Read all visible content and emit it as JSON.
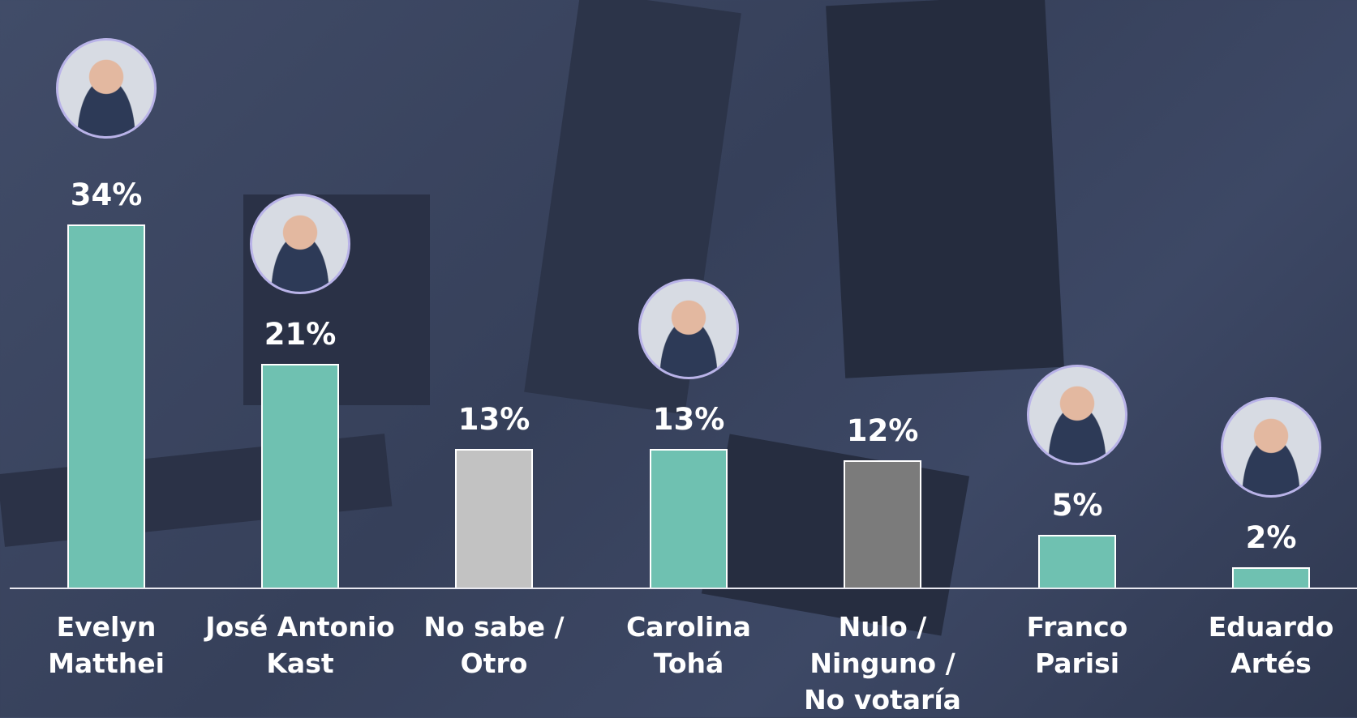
{
  "chart_data": {
    "type": "bar",
    "categories": [
      "Evelyn Matthei",
      "José Antonio Kast",
      "No sabe / Otro",
      "Carolina Tohá",
      "Nulo / Ninguno / No votaría",
      "Franco Parisi",
      "Eduardo Artés"
    ],
    "values": [
      34,
      21,
      13,
      13,
      12,
      5,
      2
    ],
    "value_labels": [
      "34%",
      "21%",
      "13%",
      "13%",
      "12%",
      "5%",
      "2%"
    ],
    "colors": [
      "#6fc1b1",
      "#6fc1b1",
      "#c2c2c2",
      "#6fc1b1",
      "#7b7b7b",
      "#6fc1b1",
      "#6fc1b1"
    ],
    "ylim": [
      0,
      55
    ]
  }
}
